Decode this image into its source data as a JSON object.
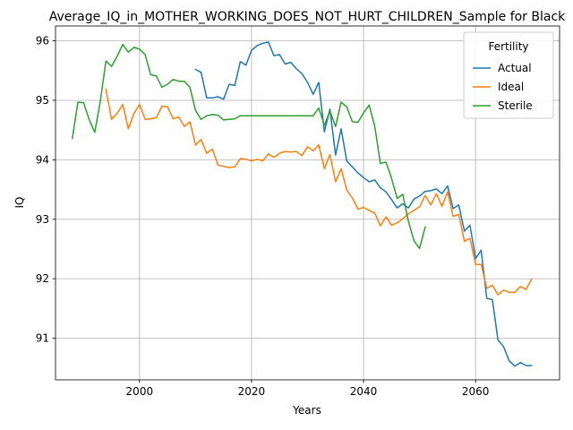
{
  "chart_data": {
    "type": "line",
    "title": "Average_IQ_in_MOTHER_WORKING_DOES_NOT_HURT_CHILDREN_Sample for Black",
    "xlabel": "Years",
    "ylabel": "IQ",
    "xlim": [
      1985,
      2075
    ],
    "ylim": [
      90.3,
      96.25
    ],
    "xticks": [
      2000,
      2020,
      2040,
      2060
    ],
    "yticks": [
      91,
      92,
      93,
      94,
      95,
      96
    ],
    "grid": true,
    "legend": {
      "title": "Fertility",
      "position": "top-right"
    },
    "series": [
      {
        "name": "Actual",
        "color": "#1f77b4",
        "x": [
          2010,
          2011,
          2012,
          2013,
          2014,
          2015,
          2016,
          2017,
          2018,
          2019,
          2020,
          2021,
          2022,
          2023,
          2024,
          2025,
          2026,
          2027,
          2028,
          2029,
          2030,
          2031,
          2032,
          2033,
          2034,
          2035,
          2036,
          2037,
          2038,
          2039,
          2040,
          2041,
          2042,
          2043,
          2044,
          2045,
          2046,
          2047,
          2048,
          2049,
          2050,
          2051,
          2052,
          2053,
          2054,
          2055,
          2056,
          2057,
          2058,
          2059,
          2060,
          2061,
          2062,
          2063,
          2064,
          2065,
          2066,
          2067,
          2068,
          2069,
          2070
        ],
        "y": [
          95.52,
          95.47,
          95.04,
          95.04,
          95.06,
          95.02,
          95.27,
          95.25,
          95.65,
          95.59,
          95.84,
          95.92,
          95.96,
          95.98,
          95.75,
          95.77,
          95.61,
          95.64,
          95.53,
          95.45,
          95.3,
          95.1,
          95.3,
          94.47,
          94.85,
          94.08,
          94.52,
          93.98,
          93.88,
          93.78,
          93.7,
          93.63,
          93.66,
          93.53,
          93.46,
          93.33,
          93.19,
          93.26,
          93.19,
          93.34,
          93.39,
          93.47,
          93.48,
          93.51,
          93.43,
          93.56,
          93.18,
          93.24,
          92.8,
          92.9,
          92.34,
          92.48,
          91.67,
          91.65,
          90.97,
          90.86,
          90.62,
          90.53,
          90.59,
          90.54,
          90.54
        ]
      },
      {
        "name": "Ideal",
        "color": "#ff7f0e",
        "x": [
          1994,
          1995,
          1996,
          1997,
          1998,
          1999,
          2000,
          2001,
          2002,
          2003,
          2004,
          2005,
          2006,
          2007,
          2008,
          2009,
          2010,
          2011,
          2012,
          2013,
          2014,
          2015,
          2016,
          2017,
          2018,
          2019,
          2020,
          2021,
          2022,
          2023,
          2024,
          2025,
          2026,
          2027,
          2028,
          2029,
          2030,
          2031,
          2032,
          2033,
          2034,
          2035,
          2036,
          2037,
          2038,
          2039,
          2040,
          2041,
          2042,
          2043,
          2044,
          2045,
          2046,
          2047,
          2048,
          2049,
          2050,
          2051,
          2052,
          2053,
          2054,
          2055,
          2056,
          2057,
          2058,
          2059,
          2060,
          2061,
          2062,
          2063,
          2064,
          2065,
          2066,
          2067,
          2068,
          2069,
          2070
        ],
        "y": [
          95.18,
          94.68,
          94.78,
          94.93,
          94.52,
          94.78,
          94.93,
          94.68,
          94.69,
          94.71,
          94.9,
          94.89,
          94.69,
          94.72,
          94.56,
          94.64,
          94.25,
          94.34,
          94.11,
          94.18,
          93.91,
          93.89,
          93.87,
          93.88,
          94.02,
          94.01,
          93.98,
          94.01,
          93.98,
          94.1,
          94.04,
          94.11,
          94.14,
          94.13,
          94.14,
          94.07,
          94.22,
          94.15,
          94.25,
          93.85,
          94.09,
          93.63,
          93.85,
          93.49,
          93.36,
          93.17,
          93.2,
          93.15,
          93.1,
          92.89,
          93.04,
          92.9,
          92.94,
          93.01,
          93.09,
          93.15,
          93.21,
          93.4,
          93.24,
          93.43,
          93.22,
          93.46,
          93.05,
          93.08,
          92.63,
          92.68,
          92.24,
          92.24,
          91.84,
          91.89,
          91.73,
          91.81,
          91.77,
          91.77,
          91.87,
          91.82,
          91.99
        ]
      },
      {
        "name": "Sterile",
        "color": "#2ca02c",
        "x": [
          1988,
          1989,
          1990,
          1991,
          1992,
          1993,
          1994,
          1995,
          1996,
          1997,
          1998,
          1999,
          2000,
          2001,
          2002,
          2003,
          2004,
          2005,
          2006,
          2007,
          2008,
          2009,
          2010,
          2011,
          2012,
          2013,
          2014,
          2015,
          2016,
          2017,
          2018,
          2019,
          2020,
          2021,
          2022,
          2023,
          2024,
          2025,
          2026,
          2027,
          2028,
          2029,
          2030,
          2031,
          2032,
          2033,
          2034,
          2035,
          2036,
          2037,
          2038,
          2039,
          2040,
          2041,
          2042,
          2043,
          2044,
          2045,
          2046,
          2047,
          2048,
          2049,
          2050,
          2051
        ],
        "y": [
          94.36,
          94.97,
          94.96,
          94.68,
          94.46,
          94.98,
          95.66,
          95.57,
          95.74,
          95.94,
          95.81,
          95.89,
          95.86,
          95.77,
          95.43,
          95.41,
          95.22,
          95.27,
          95.35,
          95.32,
          95.32,
          95.22,
          94.83,
          94.68,
          94.74,
          94.76,
          94.75,
          94.67,
          94.68,
          94.69,
          94.74,
          94.74,
          94.74,
          94.74,
          94.74,
          94.74,
          94.74,
          94.74,
          94.74,
          94.74,
          94.74,
          94.74,
          94.74,
          94.74,
          94.87,
          94.58,
          94.82,
          94.56,
          94.97,
          94.89,
          94.64,
          94.63,
          94.79,
          94.92,
          94.56,
          93.94,
          93.96,
          93.69,
          93.35,
          93.42,
          92.97,
          92.64,
          92.51,
          92.87
        ]
      }
    ]
  }
}
